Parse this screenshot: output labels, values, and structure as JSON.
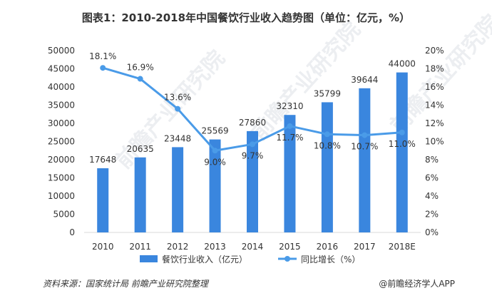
{
  "title": "图表1：2010-2018年中国餐饮行业收入趋势图（单位：亿元，%）",
  "source": "资料来源：国家统计局 前瞻产业研究院整理",
  "brand": "@前瞻经济学人APP",
  "watermark_text": "前瞻产业研究院",
  "colors": {
    "bar": "#3a86de",
    "line": "#4a9be8",
    "text": "#333333",
    "axis": "#d9d9d9"
  },
  "chart_data": {
    "type": "bar",
    "categories": [
      "2010",
      "2011",
      "2012",
      "2013",
      "2014",
      "2015",
      "2016",
      "2017",
      "2018E"
    ],
    "series": [
      {
        "name": "餐饮行业收入（亿元）",
        "type": "bar",
        "axis": "left",
        "values": [
          17648,
          20635,
          23448,
          25569,
          27860,
          32310,
          35799,
          39644,
          44000
        ],
        "labels": [
          "17648",
          "20635",
          "23448",
          "25569",
          "27860",
          "32310",
          "35799",
          "39644",
          "44000"
        ]
      },
      {
        "name": "同比增长（%）",
        "type": "line",
        "axis": "right",
        "values": [
          18.1,
          16.9,
          13.6,
          9.0,
          9.7,
          11.7,
          10.8,
          10.7,
          11.0
        ],
        "labels": [
          "18.1%",
          "16.9%",
          "13.6%",
          "9.0%",
          "9.7%",
          "11.7%",
          "10.8%",
          "10.7%",
          "11.0%"
        ]
      }
    ],
    "y_left": {
      "min": 0,
      "max": 50000,
      "ticks": [
        "0",
        "5000",
        "10000",
        "15000",
        "20000",
        "25000",
        "30000",
        "35000",
        "40000",
        "45000",
        "50000"
      ]
    },
    "y_right": {
      "min": 0,
      "max": 20,
      "ticks": [
        "0%",
        "2%",
        "4%",
        "6%",
        "8%",
        "10%",
        "12%",
        "14%",
        "16%",
        "18%",
        "20%"
      ]
    },
    "legend_position": "bottom-center"
  }
}
